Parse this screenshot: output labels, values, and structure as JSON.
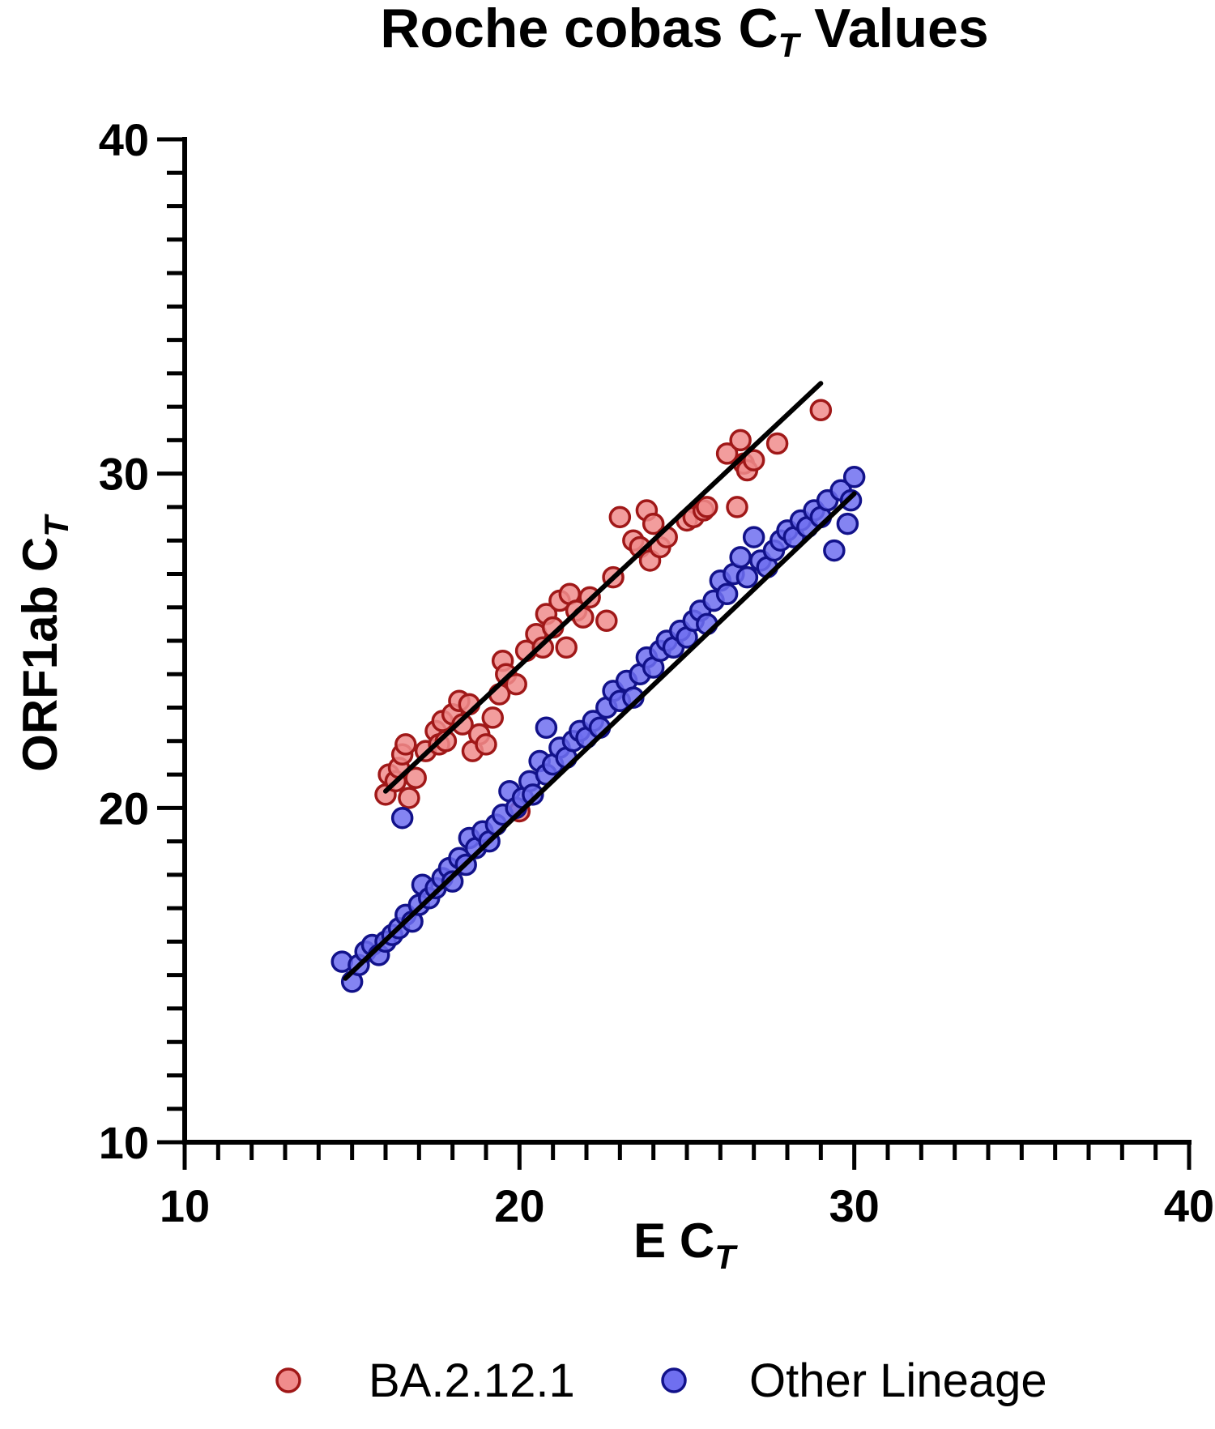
{
  "chart_data": {
    "type": "scatter",
    "title": {
      "main": "Roche cobas C",
      "sub": "T",
      "rest": " Values"
    },
    "xlabel": {
      "main": "E C",
      "sub": "T"
    },
    "ylabel": {
      "main": "ORF1ab C",
      "sub": "T"
    },
    "xlim": [
      10,
      40
    ],
    "ylim": [
      10,
      40
    ],
    "x_ticks": [
      "10",
      "20",
      "30",
      "40"
    ],
    "y_ticks": [
      "10",
      "20",
      "30",
      "40"
    ],
    "grid": false,
    "legend_position": "bottom",
    "series": [
      {
        "name": "BA.2.12.1",
        "color": "#f08c8c",
        "edge_color": "#a01818",
        "trend_line": {
          "x": [
            16.0,
            29.0
          ],
          "y": [
            20.5,
            32.7
          ]
        },
        "points": [
          [
            16.0,
            20.4
          ],
          [
            16.1,
            21.0
          ],
          [
            16.3,
            20.8
          ],
          [
            16.4,
            21.2
          ],
          [
            16.5,
            21.6
          ],
          [
            16.6,
            21.9
          ],
          [
            16.7,
            20.3
          ],
          [
            16.9,
            20.9
          ],
          [
            17.2,
            21.7
          ],
          [
            17.5,
            22.3
          ],
          [
            17.6,
            21.9
          ],
          [
            17.7,
            22.6
          ],
          [
            17.8,
            22.0
          ],
          [
            18.0,
            22.8
          ],
          [
            18.2,
            23.2
          ],
          [
            18.3,
            22.5
          ],
          [
            18.5,
            23.1
          ],
          [
            18.6,
            21.7
          ],
          [
            18.8,
            22.2
          ],
          [
            19.0,
            21.9
          ],
          [
            19.2,
            22.7
          ],
          [
            19.4,
            23.4
          ],
          [
            19.5,
            24.4
          ],
          [
            19.6,
            24.0
          ],
          [
            19.9,
            23.7
          ],
          [
            20.0,
            19.9
          ],
          [
            20.2,
            24.7
          ],
          [
            20.5,
            25.2
          ],
          [
            20.7,
            24.8
          ],
          [
            20.8,
            25.8
          ],
          [
            21.0,
            25.4
          ],
          [
            21.2,
            26.2
          ],
          [
            21.4,
            24.8
          ],
          [
            21.5,
            26.4
          ],
          [
            21.7,
            25.9
          ],
          [
            21.9,
            25.7
          ],
          [
            22.1,
            26.3
          ],
          [
            22.6,
            25.6
          ],
          [
            22.8,
            26.9
          ],
          [
            23.0,
            28.7
          ],
          [
            23.4,
            28.0
          ],
          [
            23.6,
            27.8
          ],
          [
            23.8,
            28.9
          ],
          [
            23.9,
            27.4
          ],
          [
            24.0,
            28.5
          ],
          [
            24.2,
            27.8
          ],
          [
            24.4,
            28.1
          ],
          [
            25.0,
            28.6
          ],
          [
            25.2,
            28.7
          ],
          [
            25.5,
            28.9
          ],
          [
            25.6,
            29.0
          ],
          [
            26.2,
            30.6
          ],
          [
            26.5,
            29.0
          ],
          [
            26.6,
            31.0
          ],
          [
            26.7,
            30.3
          ],
          [
            26.8,
            30.1
          ],
          [
            27.0,
            30.4
          ],
          [
            27.7,
            30.9
          ],
          [
            29.0,
            31.9
          ]
        ]
      },
      {
        "name": "Other Lineage",
        "color": "#6f6ff0",
        "edge_color": "#12128a",
        "trend_line": {
          "x": [
            14.8,
            30.0
          ],
          "y": [
            14.9,
            29.4
          ]
        },
        "points": [
          [
            14.7,
            15.4
          ],
          [
            15.0,
            14.8
          ],
          [
            15.2,
            15.3
          ],
          [
            15.4,
            15.7
          ],
          [
            15.6,
            15.9
          ],
          [
            15.8,
            15.6
          ],
          [
            16.0,
            16.0
          ],
          [
            16.2,
            16.2
          ],
          [
            16.4,
            16.4
          ],
          [
            16.6,
            16.8
          ],
          [
            16.8,
            16.6
          ],
          [
            17.0,
            17.1
          ],
          [
            17.1,
            17.7
          ],
          [
            17.3,
            17.3
          ],
          [
            17.5,
            17.6
          ],
          [
            17.7,
            17.9
          ],
          [
            17.9,
            18.2
          ],
          [
            18.0,
            17.8
          ],
          [
            18.2,
            18.5
          ],
          [
            18.4,
            18.3
          ],
          [
            18.5,
            19.1
          ],
          [
            18.7,
            18.8
          ],
          [
            18.9,
            19.3
          ],
          [
            19.1,
            19.0
          ],
          [
            19.3,
            19.5
          ],
          [
            19.5,
            19.8
          ],
          [
            19.7,
            20.5
          ],
          [
            19.9,
            20.0
          ],
          [
            20.1,
            20.3
          ],
          [
            20.3,
            20.8
          ],
          [
            20.4,
            20.4
          ],
          [
            20.6,
            21.4
          ],
          [
            20.8,
            21.0
          ],
          [
            21.0,
            21.3
          ],
          [
            21.2,
            21.8
          ],
          [
            21.4,
            21.5
          ],
          [
            21.6,
            22.0
          ],
          [
            21.8,
            22.3
          ],
          [
            22.0,
            22.1
          ],
          [
            22.2,
            22.6
          ],
          [
            22.4,
            22.4
          ],
          [
            22.6,
            23.0
          ],
          [
            22.8,
            23.5
          ],
          [
            23.0,
            23.2
          ],
          [
            23.2,
            23.8
          ],
          [
            23.4,
            23.3
          ],
          [
            23.6,
            24.0
          ],
          [
            23.8,
            24.5
          ],
          [
            24.0,
            24.2
          ],
          [
            24.2,
            24.7
          ],
          [
            24.4,
            25.0
          ],
          [
            24.6,
            24.8
          ],
          [
            24.8,
            25.3
          ],
          [
            25.0,
            25.1
          ],
          [
            25.2,
            25.6
          ],
          [
            25.4,
            25.9
          ],
          [
            25.6,
            25.5
          ],
          [
            25.8,
            26.2
          ],
          [
            26.0,
            26.8
          ],
          [
            26.2,
            26.4
          ],
          [
            26.4,
            27.0
          ],
          [
            26.6,
            27.5
          ],
          [
            26.8,
            26.9
          ],
          [
            27.0,
            28.1
          ],
          [
            27.2,
            27.4
          ],
          [
            27.4,
            27.2
          ],
          [
            27.6,
            27.7
          ],
          [
            27.8,
            28.0
          ],
          [
            28.0,
            28.3
          ],
          [
            28.2,
            28.1
          ],
          [
            28.4,
            28.6
          ],
          [
            28.6,
            28.4
          ],
          [
            28.8,
            28.9
          ],
          [
            29.0,
            28.7
          ],
          [
            29.2,
            29.2
          ],
          [
            29.4,
            27.7
          ],
          [
            29.6,
            29.5
          ],
          [
            29.8,
            28.5
          ],
          [
            29.9,
            29.2
          ],
          [
            30.0,
            29.9
          ],
          [
            16.5,
            19.7
          ],
          [
            20.8,
            22.4
          ]
        ]
      }
    ]
  }
}
